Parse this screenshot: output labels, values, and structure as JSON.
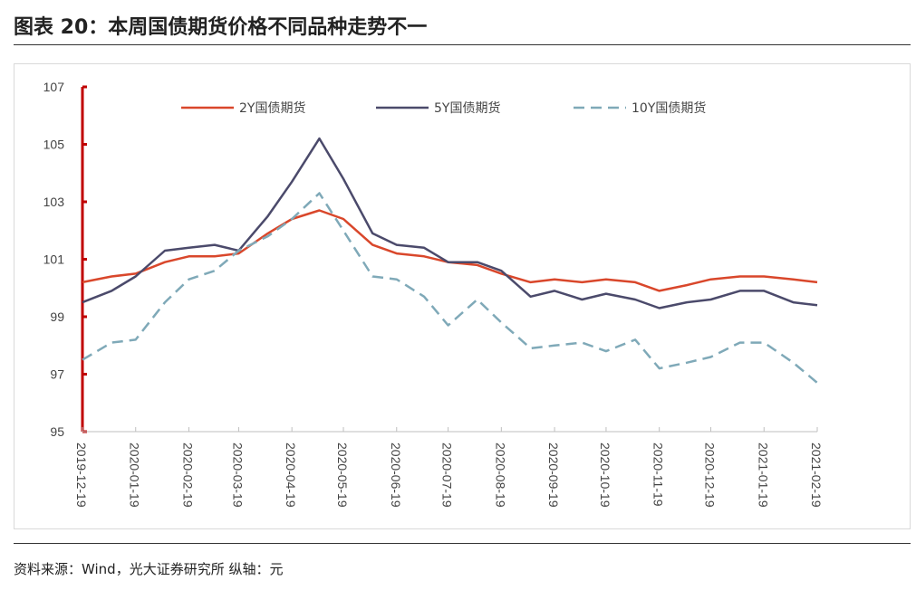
{
  "title": "图表 20：本周国债期货价格不同品种走势不一",
  "source": "资料来源：Wind，光大证券研究所 纵轴：元",
  "chart_data": {
    "type": "line",
    "title": "",
    "xlabel": "",
    "ylabel": "",
    "ylim": [
      95,
      107
    ],
    "yticks": [
      "95",
      "97",
      "99",
      "101",
      "103",
      "105",
      "107"
    ],
    "xticks": [
      "2019-12-19",
      "2020-01-19",
      "2020-02-19",
      "2020-03-19",
      "2020-04-19",
      "2020-05-19",
      "2020-06-19",
      "2020-07-19",
      "2020-08-19",
      "2020-09-19",
      "2020-10-19",
      "2020-11-19",
      "2020-12-19",
      "2021-01-19",
      "2021-02-19"
    ],
    "legend": "top",
    "grid": false,
    "x": [
      "2019-12-19",
      "2020-01-05",
      "2020-01-19",
      "2020-02-05",
      "2020-02-19",
      "2020-03-05",
      "2020-03-19",
      "2020-04-05",
      "2020-04-19",
      "2020-05-05",
      "2020-05-19",
      "2020-06-05",
      "2020-06-19",
      "2020-07-05",
      "2020-07-19",
      "2020-08-05",
      "2020-08-19",
      "2020-09-05",
      "2020-09-19",
      "2020-10-05",
      "2020-10-19",
      "2020-11-05",
      "2020-11-19",
      "2020-12-05",
      "2020-12-19",
      "2021-01-05",
      "2021-01-19",
      "2021-02-05",
      "2021-02-19"
    ],
    "series": [
      {
        "name": "2Y国债期货",
        "color": "#d9472b",
        "dash": false,
        "values": [
          100.2,
          100.4,
          100.5,
          100.9,
          101.1,
          101.1,
          101.2,
          101.9,
          102.4,
          102.7,
          102.4,
          101.5,
          101.2,
          101.1,
          100.9,
          100.8,
          100.5,
          100.2,
          100.3,
          100.2,
          100.3,
          100.2,
          99.9,
          100.1,
          100.3,
          100.4,
          100.4,
          100.3,
          100.2
        ]
      },
      {
        "name": "5Y国债期货",
        "color": "#4b4a6b",
        "dash": false,
        "values": [
          99.5,
          99.9,
          100.4,
          101.3,
          101.4,
          101.5,
          101.3,
          102.5,
          103.7,
          105.2,
          103.8,
          101.9,
          101.5,
          101.4,
          100.9,
          100.9,
          100.6,
          99.7,
          99.9,
          99.6,
          99.8,
          99.6,
          99.3,
          99.5,
          99.6,
          99.9,
          99.9,
          99.5,
          99.4
        ]
      },
      {
        "name": "10Y国债期货",
        "color": "#7fa9b8",
        "dash": true,
        "values": [
          97.5,
          98.1,
          98.2,
          99.5,
          100.3,
          100.6,
          101.3,
          101.8,
          102.4,
          103.3,
          102.0,
          100.4,
          100.3,
          99.7,
          98.7,
          99.6,
          98.8,
          97.9,
          98.0,
          98.1,
          97.8,
          98.2,
          97.2,
          97.4,
          97.6,
          98.1,
          98.1,
          97.4,
          96.7
        ]
      }
    ]
  }
}
